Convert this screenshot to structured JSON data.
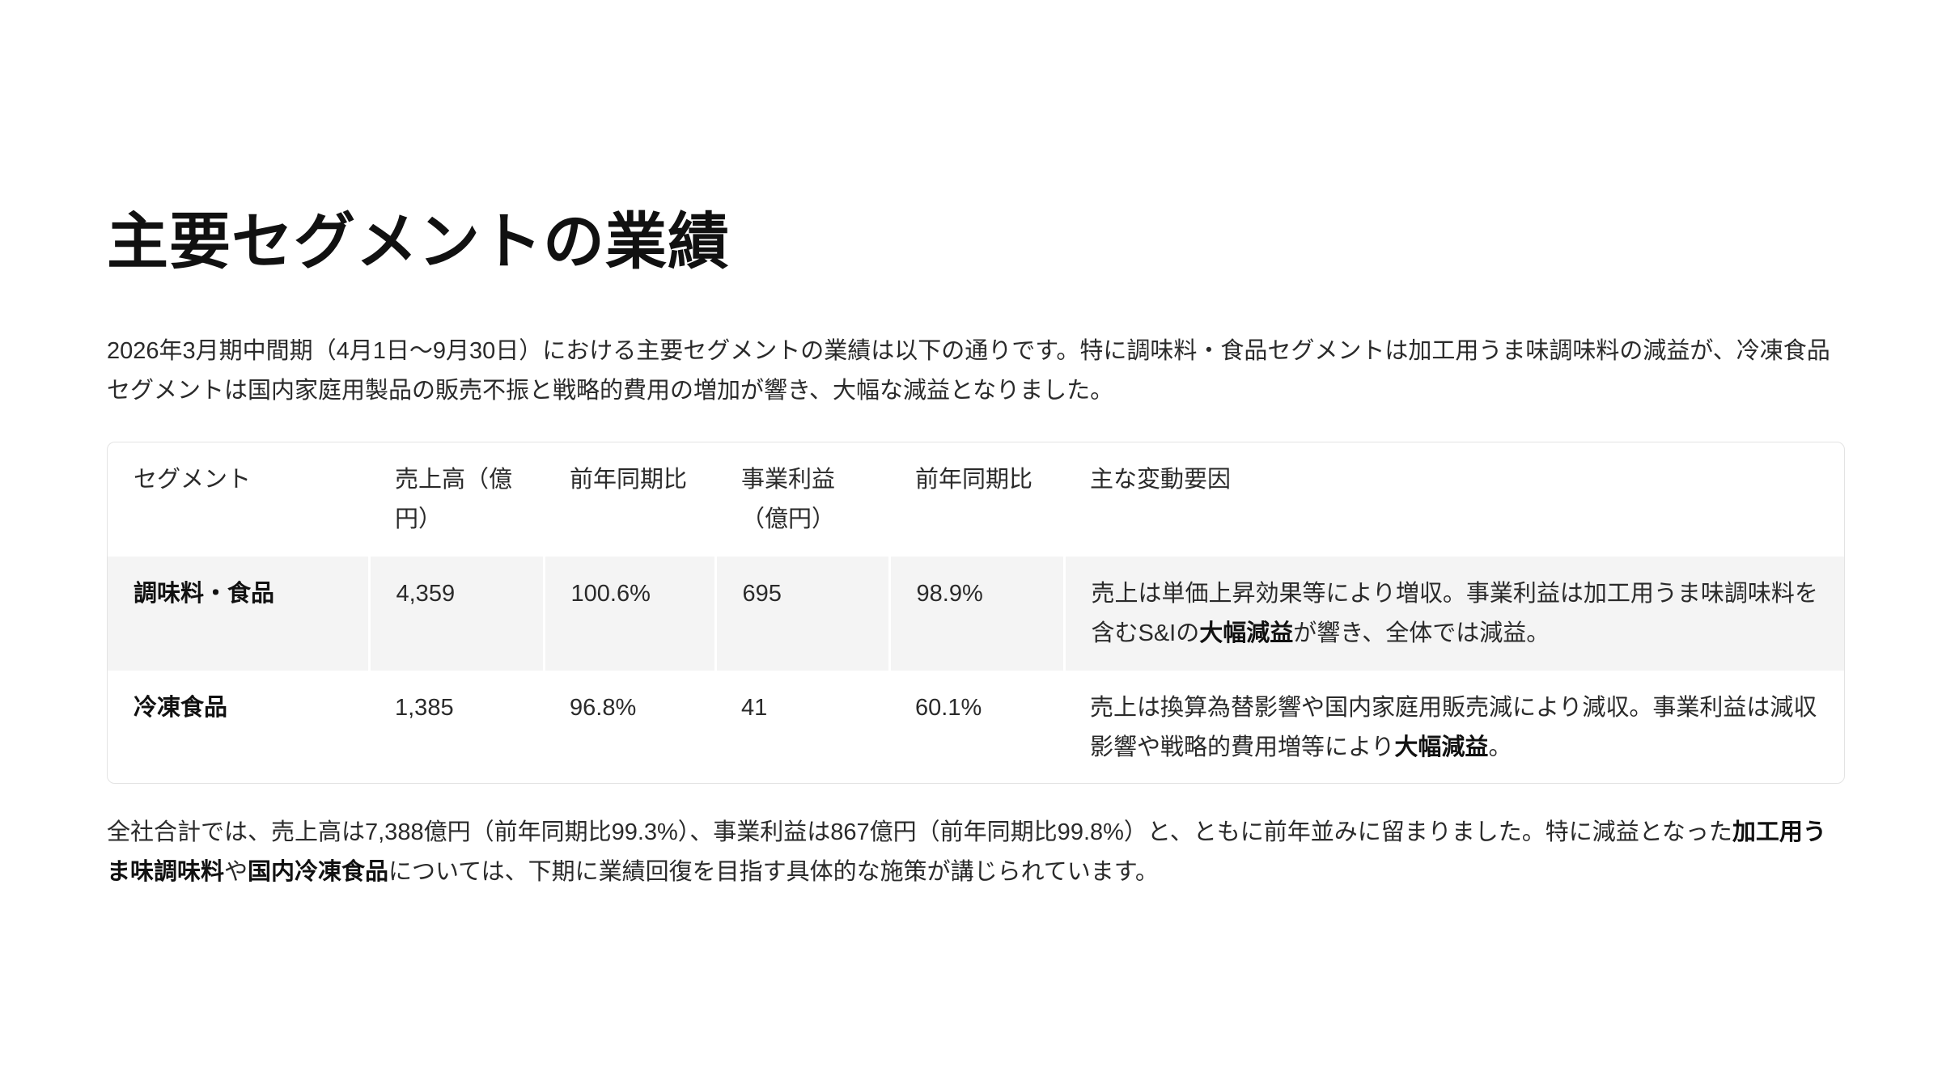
{
  "title": "主要セグメントの業績",
  "intro": "2026年3月期中間期（4月1日〜9月30日）における主要セグメントの業績は以下の通りです。特に調味料・食品セグメントは加工用うま味調味料の減益が、冷凍食品セグメントは国内家庭用製品の販売不振と戦略的費用の増加が響き、大幅な減益となりました。",
  "table": {
    "headers": [
      "セグメント",
      "売上高（億円）",
      "前年同期比",
      "事業利益（億円）",
      "前年同期比",
      "主な変動要因"
    ],
    "rows": [
      {
        "segment": "調味料・食品",
        "sales": "4,359",
        "sales_yoy": "100.6%",
        "profit": "695",
        "profit_yoy": "98.9%",
        "factor_pre": "売上は単価上昇効果等により増収。事業利益は加工用うま味調味料を含むS&Iの",
        "factor_bold": "大幅減益",
        "factor_post": "が響き、全体では減益。"
      },
      {
        "segment": "冷凍食品",
        "sales": "1,385",
        "sales_yoy": "96.8%",
        "profit": "41",
        "profit_yoy": "60.1%",
        "factor_pre": "売上は換算為替影響や国内家庭用販売減により減収。事業利益は減収影響や戦略的費用増等により",
        "factor_bold": "大幅減益",
        "factor_post": "。"
      }
    ]
  },
  "summary": {
    "pre": "全社合計では、売上高は7,388億円（前年同期比99.3%）、事業利益は867億円（前年同期比99.8%）と、ともに前年並みに留まりました。特に減益となった",
    "bold1": "加工用うま味調味料",
    "mid": "や",
    "bold2": "国内冷凍食品",
    "post": "については、下期に業績回復を目指す具体的な施策が講じられています。"
  }
}
